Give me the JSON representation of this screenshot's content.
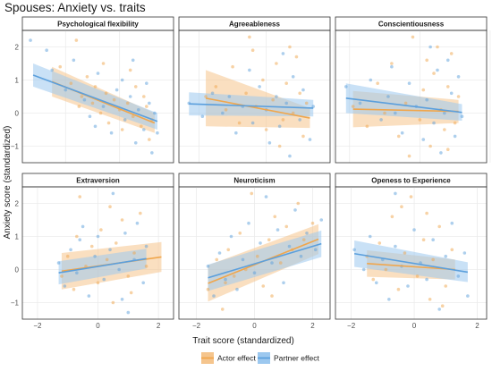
{
  "title": "Spouses: Anxiety vs. traits",
  "colors": {
    "actor": "#f0a64c",
    "partner": "#5b9fdc",
    "actor_band": "#f5c58d",
    "partner_band": "#9cc8ef",
    "strip_bg": "#ffffff",
    "grid": "#ebebeb",
    "border": "#333333"
  },
  "chart_data": {
    "type": "scatter",
    "xlabel": "Trait score (standardized)",
    "ylabel": "Anxiety score (standardized)",
    "grid": true,
    "legend_position": "bottom",
    "series_names": [
      "Actor effect",
      "Partner effect"
    ],
    "x_ticks": [
      "−2",
      "0",
      "2"
    ],
    "y_ticks": [
      "−1",
      "0",
      "1",
      "2"
    ],
    "panels": [
      {
        "name": "Psychological flexibility",
        "xlim": [
          -3.6,
          2.0
        ],
        "ylim": [
          -1.5,
          2.5
        ],
        "x_ticks": [
          -2,
          0,
          2
        ],
        "y_ticks": [
          -1,
          0,
          1,
          2
        ],
        "actor": {
          "x0": -2.5,
          "x1": 1.3,
          "y0": 0.95,
          "y1": -0.3,
          "band0": 0.45,
          "band1": 0.3
        },
        "partner": {
          "x0": -3.2,
          "x1": 1.4,
          "y0": 1.15,
          "y1": -0.25,
          "band0": 0.35,
          "band1": 0.25
        },
        "points_actor": [
          [
            -2.2,
            1.4
          ],
          [
            -1.8,
            0.9
          ],
          [
            -1.6,
            2.2
          ],
          [
            -1.4,
            0.5
          ],
          [
            -1.2,
            1.1
          ],
          [
            -1.0,
            0.3
          ],
          [
            -0.9,
            0.8
          ],
          [
            -0.7,
            0.0
          ],
          [
            -0.5,
            0.6
          ],
          [
            -0.4,
            -0.3
          ],
          [
            -0.2,
            0.4
          ],
          [
            0.0,
            0.1
          ],
          [
            0.1,
            -0.5
          ],
          [
            0.3,
            0.3
          ],
          [
            0.5,
            -0.1
          ],
          [
            0.6,
            0.8
          ],
          [
            0.8,
            -0.4
          ],
          [
            1.0,
            0.2
          ],
          [
            1.1,
            -0.8
          ],
          [
            1.2,
            -0.2
          ],
          [
            -1.5,
            0.2
          ],
          [
            -0.6,
            1.5
          ],
          [
            0.4,
            1.3
          ],
          [
            0.9,
            0.5
          ]
        ],
        "points_partner": [
          [
            -3.3,
            2.2
          ],
          [
            -2.5,
            1.3
          ],
          [
            -2.0,
            0.7
          ],
          [
            -1.7,
            1.6
          ],
          [
            -1.3,
            0.4
          ],
          [
            -1.1,
            -0.1
          ],
          [
            -0.8,
            1.2
          ],
          [
            -0.6,
            0.2
          ],
          [
            -0.3,
            -0.6
          ],
          [
            -0.1,
            0.7
          ],
          [
            0.2,
            -0.2
          ],
          [
            0.4,
            0.5
          ],
          [
            0.6,
            -0.9
          ],
          [
            0.7,
            0.1
          ],
          [
            0.9,
            -0.5
          ],
          [
            1.0,
            0.9
          ],
          [
            1.2,
            -1.2
          ],
          [
            1.3,
            0.0
          ],
          [
            1.4,
            -0.6
          ],
          [
            -0.9,
            -0.4
          ],
          [
            0.1,
            1.0
          ],
          [
            0.5,
            1.6
          ],
          [
            -2.7,
            1.9
          ],
          [
            1.1,
            0.3
          ]
        ]
      },
      {
        "name": "Agreeableness",
        "xlim": [
          -2.6,
          1.9
        ],
        "ylim": [
          -1.5,
          2.5
        ],
        "x_ticks": [
          -2,
          0,
          2
        ],
        "y_ticks": [
          -1,
          0,
          1,
          2
        ],
        "actor": {
          "x0": -1.8,
          "x1": 1.3,
          "y0": 0.45,
          "y1": -0.15,
          "band0": 0.85,
          "band1": 0.3
        },
        "partner": {
          "x0": -2.3,
          "x1": 1.4,
          "y0": 0.28,
          "y1": 0.15,
          "band0": 0.35,
          "band1": 0.25
        },
        "points_actor": [
          [
            -1.8,
            0.5
          ],
          [
            -1.5,
            0.8
          ],
          [
            -1.2,
            0.1
          ],
          [
            -1.0,
            1.4
          ],
          [
            -0.8,
            -0.3
          ],
          [
            -0.6,
            0.6
          ],
          [
            -0.5,
            2.3
          ],
          [
            -0.3,
            0.2
          ],
          [
            -0.1,
            1.0
          ],
          [
            0.0,
            -0.5
          ],
          [
            0.2,
            0.4
          ],
          [
            0.3,
            1.5
          ],
          [
            0.5,
            -0.2
          ],
          [
            0.6,
            0.9
          ],
          [
            0.8,
            0.0
          ],
          [
            0.9,
            1.7
          ],
          [
            1.1,
            -0.7
          ],
          [
            1.2,
            0.3
          ],
          [
            -0.4,
            1.9
          ],
          [
            0.4,
            -1.0
          ],
          [
            0.7,
            2.0
          ],
          [
            1.0,
            0.6
          ]
        ],
        "points_partner": [
          [
            -2.3,
            0.3
          ],
          [
            -1.9,
            -0.1
          ],
          [
            -1.6,
            0.6
          ],
          [
            -1.3,
            0.0
          ],
          [
            -1.1,
            0.5
          ],
          [
            -0.9,
            -0.6
          ],
          [
            -0.7,
            0.2
          ],
          [
            -0.4,
            -0.3
          ],
          [
            -0.2,
            0.8
          ],
          [
            0.0,
            0.1
          ],
          [
            0.1,
            -0.9
          ],
          [
            0.3,
            0.5
          ],
          [
            0.4,
            -0.4
          ],
          [
            0.6,
            0.3
          ],
          [
            0.7,
            -1.3
          ],
          [
            0.8,
            1.1
          ],
          [
            1.0,
            -0.2
          ],
          [
            1.1,
            0.7
          ],
          [
            1.3,
            -0.8
          ],
          [
            1.4,
            0.2
          ],
          [
            -0.5,
            1.3
          ],
          [
            0.5,
            1.8
          ]
        ]
      },
      {
        "name": "Conscientiousness",
        "xlim": [
          -2.4,
          1.9
        ],
        "ylim": [
          -1.5,
          2.5
        ],
        "x_ticks": [
          -2,
          0,
          2
        ],
        "y_ticks": [
          -1,
          0,
          1,
          2
        ],
        "actor": {
          "x0": -1.9,
          "x1": 1.1,
          "y0": 0.12,
          "y1": 0.05,
          "band0": 0.55,
          "band1": 0.35
        },
        "partner": {
          "x0": -2.1,
          "x1": 1.2,
          "y0": 0.45,
          "y1": 0.02,
          "band0": 0.45,
          "band1": 0.25
        },
        "points_actor": [
          [
            -1.9,
            0.2
          ],
          [
            -1.5,
            -0.4
          ],
          [
            -1.2,
            0.9
          ],
          [
            -1.0,
            0.0
          ],
          [
            -0.8,
            1.5
          ],
          [
            -0.6,
            -0.7
          ],
          [
            -0.4,
            0.3
          ],
          [
            -0.2,
            2.3
          ],
          [
            0.0,
            -0.2
          ],
          [
            0.1,
            0.7
          ],
          [
            0.3,
            -1.0
          ],
          [
            0.4,
            1.2
          ],
          [
            0.6,
            0.1
          ],
          [
            0.7,
            -0.5
          ],
          [
            0.8,
            0.8
          ],
          [
            0.9,
            1.8
          ],
          [
            1.0,
            -0.3
          ],
          [
            1.1,
            0.5
          ],
          [
            -0.3,
            -1.3
          ],
          [
            0.5,
            2.0
          ],
          [
            0.2,
            1.6
          ],
          [
            0.8,
            -1.1
          ]
        ],
        "points_partner": [
          [
            -2.1,
            0.8
          ],
          [
            -1.7,
            0.3
          ],
          [
            -1.4,
            1.0
          ],
          [
            -1.1,
            -0.2
          ],
          [
            -0.9,
            0.5
          ],
          [
            -0.7,
            0.0
          ],
          [
            -0.5,
            -0.6
          ],
          [
            -0.3,
            0.9
          ],
          [
            -0.1,
            0.2
          ],
          [
            0.1,
            -0.8
          ],
          [
            0.2,
            0.4
          ],
          [
            0.4,
            -0.3
          ],
          [
            0.5,
            1.3
          ],
          [
            0.6,
            -1.2
          ],
          [
            0.7,
            0.0
          ],
          [
            0.9,
            0.6
          ],
          [
            1.0,
            -0.7
          ],
          [
            1.1,
            1.1
          ],
          [
            1.2,
            -0.1
          ],
          [
            0.3,
            2.0
          ],
          [
            0.8,
            1.6
          ],
          [
            -0.8,
            1.4
          ]
        ]
      },
      {
        "name": "Extraversion",
        "xlim": [
          -2.5,
          2.5
        ],
        "ylim": [
          -1.5,
          2.5
        ],
        "x_ticks": [
          -2,
          0,
          2
        ],
        "y_ticks": [
          -1,
          0,
          1,
          2
        ],
        "actor": {
          "x0": -1.2,
          "x1": 2.1,
          "y0": -0.05,
          "y1": 0.38,
          "band0": 0.55,
          "band1": 0.45
        },
        "partner": {
          "x0": -1.3,
          "x1": 1.6,
          "y0": -0.1,
          "y1": 0.33,
          "band0": 0.35,
          "band1": 0.3
        },
        "points_actor": [
          [
            -1.2,
            -0.2
          ],
          [
            -1.0,
            0.4
          ],
          [
            -0.8,
            -0.6
          ],
          [
            -0.6,
            2.2
          ],
          [
            -0.4,
            0.1
          ],
          [
            -0.2,
            0.7
          ],
          [
            0.0,
            -0.4
          ],
          [
            0.1,
            1.2
          ],
          [
            0.3,
            0.3
          ],
          [
            0.5,
            -1.0
          ],
          [
            0.6,
            0.8
          ],
          [
            0.8,
            1.5
          ],
          [
            1.0,
            -0.2
          ],
          [
            1.2,
            0.5
          ],
          [
            1.4,
            1.7
          ],
          [
            1.6,
            0.1
          ],
          [
            -0.7,
            1.0
          ],
          [
            0.4,
            1.9
          ],
          [
            1.1,
            -0.7
          ]
        ],
        "points_partner": [
          [
            -1.3,
            0.2
          ],
          [
            -1.1,
            -0.5
          ],
          [
            -0.9,
            0.6
          ],
          [
            -0.7,
            -0.1
          ],
          [
            -0.5,
            1.3
          ],
          [
            -0.3,
            -0.8
          ],
          [
            -0.1,
            0.4
          ],
          [
            0.0,
            1.0
          ],
          [
            0.2,
            -0.3
          ],
          [
            0.4,
            0.6
          ],
          [
            0.5,
            2.3
          ],
          [
            0.7,
            0.0
          ],
          [
            0.9,
            1.1
          ],
          [
            1.0,
            -1.3
          ],
          [
            1.2,
            0.3
          ],
          [
            1.3,
            1.4
          ],
          [
            1.5,
            -0.4
          ],
          [
            1.6,
            0.7
          ],
          [
            -0.6,
            0.9
          ],
          [
            0.8,
            -0.9
          ]
        ]
      },
      {
        "name": "Neuroticism",
        "xlim": [
          -2.6,
          2.6
        ],
        "ylim": [
          -1.5,
          2.5
        ],
        "x_ticks": [
          -2,
          0,
          2
        ],
        "y_ticks": [
          -1,
          0,
          1,
          2
        ],
        "actor": {
          "x0": -1.6,
          "x1": 2.2,
          "y0": -0.42,
          "y1": 0.92,
          "band0": 0.55,
          "band1": 0.45
        },
        "partner": {
          "x0": -1.6,
          "x1": 2.3,
          "y0": -0.25,
          "y1": 0.78,
          "band0": 0.4,
          "band1": 0.4
        },
        "points_actor": [
          [
            -1.6,
            -0.6
          ],
          [
            -1.3,
            0.3
          ],
          [
            -1.1,
            -1.2
          ],
          [
            -0.9,
            0.6
          ],
          [
            -0.7,
            -0.2
          ],
          [
            -0.5,
            1.1
          ],
          [
            -0.3,
            0.0
          ],
          [
            -0.1,
            2.3
          ],
          [
            0.1,
            0.4
          ],
          [
            0.3,
            -0.5
          ],
          [
            0.5,
            0.9
          ],
          [
            0.7,
            1.6
          ],
          [
            0.9,
            0.2
          ],
          [
            1.1,
            1.3
          ],
          [
            1.3,
            0.6
          ],
          [
            1.5,
            2.0
          ],
          [
            1.7,
            0.9
          ],
          [
            2.0,
            1.4
          ],
          [
            -1.0,
            -0.4
          ],
          [
            0.6,
            -0.8
          ]
        ],
        "points_partner": [
          [
            -1.6,
            0.1
          ],
          [
            -1.4,
            -0.8
          ],
          [
            -1.2,
            0.5
          ],
          [
            -1.0,
            -0.3
          ],
          [
            -0.8,
            1.0
          ],
          [
            -0.6,
            -0.6
          ],
          [
            -0.4,
            0.3
          ],
          [
            -0.2,
            1.4
          ],
          [
            0.0,
            -0.1
          ],
          [
            0.2,
            0.8
          ],
          [
            0.4,
            2.2
          ],
          [
            0.6,
            0.2
          ],
          [
            0.8,
            1.2
          ],
          [
            1.0,
            -0.4
          ],
          [
            1.2,
            0.7
          ],
          [
            1.4,
            1.8
          ],
          [
            1.6,
            0.4
          ],
          [
            1.8,
            1.1
          ],
          [
            2.1,
            0.6
          ],
          [
            2.3,
            1.5
          ]
        ]
      },
      {
        "name": "Openess to Experience",
        "xlim": [
          -2.5,
          2.3
        ],
        "ylim": [
          -1.5,
          2.5
        ],
        "x_ticks": [
          -2,
          0,
          2
        ],
        "y_ticks": [
          -1,
          0,
          1,
          2
        ],
        "actor": {
          "x0": -1.5,
          "x1": 1.3,
          "y0": 0.18,
          "y1": 0.0,
          "band0": 0.4,
          "band1": 0.3
        },
        "partner": {
          "x0": -1.9,
          "x1": 1.7,
          "y0": 0.48,
          "y1": -0.08,
          "band0": 0.4,
          "band1": 0.3
        },
        "points_actor": [
          [
            -1.5,
            0.4
          ],
          [
            -1.3,
            -0.3
          ],
          [
            -1.1,
            0.8
          ],
          [
            -0.9,
            0.0
          ],
          [
            -0.7,
            1.6
          ],
          [
            -0.5,
            -0.6
          ],
          [
            -0.3,
            0.5
          ],
          [
            -0.1,
            2.2
          ],
          [
            0.1,
            -0.2
          ],
          [
            0.3,
            0.9
          ],
          [
            0.5,
            -0.9
          ],
          [
            0.6,
            0.3
          ],
          [
            0.8,
            1.3
          ],
          [
            1.0,
            -0.5
          ],
          [
            1.2,
            0.6
          ],
          [
            -0.4,
            1.9
          ],
          [
            0.4,
            1.7
          ],
          [
            0.9,
            -1.1
          ]
        ],
        "points_partner": [
          [
            -1.9,
            0.6
          ],
          [
            -1.6,
            0.0
          ],
          [
            -1.4,
            1.0
          ],
          [
            -1.2,
            -0.4
          ],
          [
            -1.0,
            0.3
          ],
          [
            -0.8,
            -0.9
          ],
          [
            -0.6,
            0.7
          ],
          [
            -0.4,
            0.1
          ],
          [
            -0.2,
            -0.5
          ],
          [
            0.0,
            1.2
          ],
          [
            0.2,
            0.2
          ],
          [
            0.4,
            -0.3
          ],
          [
            0.6,
            0.9
          ],
          [
            0.8,
            -1.2
          ],
          [
            1.0,
            0.4
          ],
          [
            1.2,
            1.4
          ],
          [
            1.4,
            -0.2
          ],
          [
            1.6,
            0.5
          ],
          [
            1.7,
            -0.8
          ],
          [
            -0.6,
            2.3
          ]
        ]
      }
    ]
  }
}
